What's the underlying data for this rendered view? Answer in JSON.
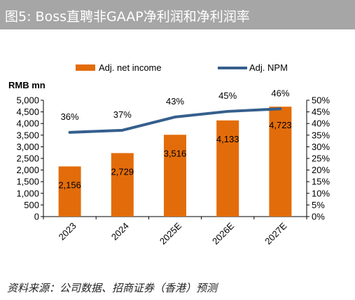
{
  "title": "图5:  Boss直聘非GAAP净利润和净利润率",
  "source": "资料来源：公司数据、招商证券（香港）预测",
  "colors": {
    "bar": "#e36c0a",
    "line": "#355f8d",
    "title_bg": "#a6a6a6"
  },
  "chart_data": {
    "type": "bar",
    "unit_label": "RMB mn",
    "categories": [
      "2023",
      "2024",
      "2025E",
      "2026E",
      "2027E"
    ],
    "series": [
      {
        "name": "Adj. net income",
        "type": "bar",
        "axis": "left",
        "values": [
          2156,
          2729,
          3516,
          4133,
          4723
        ],
        "labels": [
          "2,156",
          "2,729",
          "3,516",
          "4,133",
          "4,723"
        ]
      },
      {
        "name": "Adj. NPM",
        "type": "line",
        "axis": "right",
        "values": [
          36,
          37,
          43,
          45,
          46
        ],
        "labels": [
          "36%",
          "37%",
          "43%",
          "45%",
          "46%"
        ],
        "display_values": [
          36.2,
          37.1,
          42.8,
          45.2,
          46.3
        ]
      }
    ],
    "ylim_left": [
      0,
      5000
    ],
    "yticks_left": [
      "0",
      "500",
      "1,000",
      "1,500",
      "2,000",
      "2,500",
      "3,000",
      "3,500",
      "4,000",
      "4,500",
      "5,000"
    ],
    "ylim_right": [
      0,
      50
    ],
    "yticks_right": [
      "0%",
      "5%",
      "10%",
      "15%",
      "20%",
      "25%",
      "30%",
      "35%",
      "40%",
      "45%",
      "50%"
    ],
    "legend_position": "top",
    "grid": false
  }
}
